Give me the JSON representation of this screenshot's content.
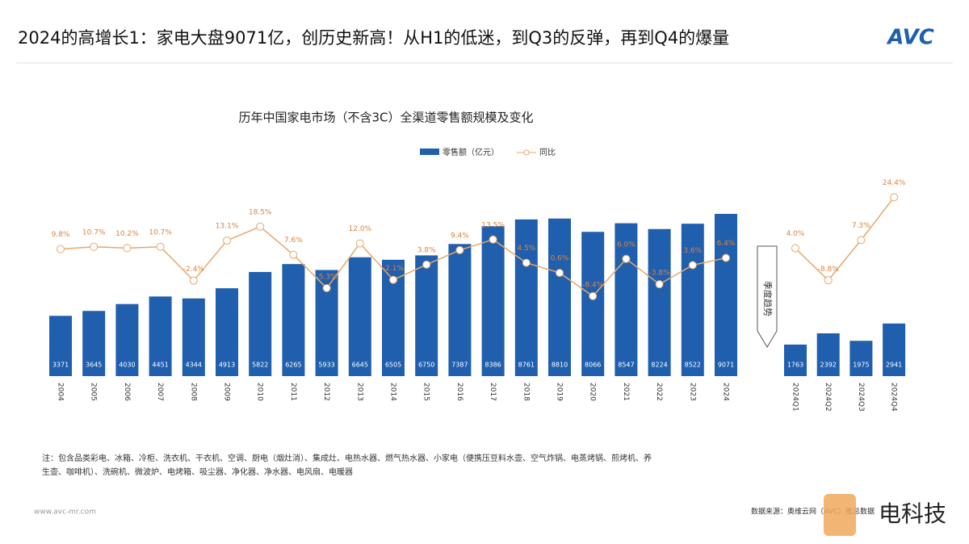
{
  "header": {
    "title": "2024的高增长1：家电大盘9071亿，创历史新高！从H1的低迷，到Q3的反弹，再到Q4的爆量",
    "logo": "AVC"
  },
  "chart_data": [
    {
      "type": "bar",
      "title": "历年中国家电市场（不含3C）全渠道零售额规模及变化",
      "categories": [
        "2004",
        "2005",
        "2006",
        "2007",
        "2008",
        "2009",
        "2010",
        "2011",
        "2012",
        "2013",
        "2014",
        "2015",
        "2016",
        "2017",
        "2018",
        "2019",
        "2020",
        "2021",
        "2022",
        "2023",
        "2024"
      ],
      "series": [
        {
          "name": "零售额（亿元）",
          "color": "#1f5fae",
          "values": [
            3371,
            3645,
            4030,
            4451,
            4344,
            4913,
            5822,
            6265,
            5933,
            6645,
            6505,
            6750,
            7387,
            8386,
            8761,
            8810,
            8066,
            8547,
            8224,
            8522,
            9071
          ]
        },
        {
          "name": "同比",
          "type": "line",
          "color": "#e8a86a",
          "values": [
            9.8,
            10.7,
            10.2,
            10.7,
            -2.4,
            13.1,
            18.5,
            7.6,
            -5.3,
            12.0,
            -2.1,
            3.8,
            9.4,
            13.5,
            4.5,
            0.6,
            -8.4,
            6.0,
            -3.8,
            3.6,
            6.4
          ],
          "value_labels": [
            "9.8%",
            "10.7%",
            "10.2%",
            "10.7%",
            "-2.4%",
            "13.1%",
            "18.5%",
            "7.6%",
            "-5.3%",
            "12.0%",
            "-2.1%",
            "3.8%",
            "9.4%",
            "13.5%",
            "4.5%",
            "0.6%",
            "-8.4%",
            "6.0%",
            "-3.8%",
            "3.6%",
            "6.4%"
          ]
        }
      ]
    },
    {
      "type": "bar",
      "categories": [
        "2024Q1",
        "2024Q2",
        "2024Q3",
        "2024Q4"
      ],
      "series": [
        {
          "color": "#1f5fae",
          "values": [
            1763,
            2392,
            1975,
            2941
          ]
        },
        {
          "type": "line",
          "color": "#e8a86a",
          "values": [
            4.0,
            -8.8,
            7.3,
            24.4
          ],
          "value_labels": [
            "4.0%",
            "-8.8%",
            "7.3%",
            "24.4%"
          ]
        }
      ]
    }
  ],
  "arrow_label": "季度趋势",
  "note": "注：包含品类彩电、冰箱、冷柜、洗衣机、干衣机、空调、厨电（烟灶消）、集成灶、电热水器、燃气热水器、小家电（便携压豆料水壶、空气炸锅、电蒸烤锅、煎烤机、养生壶、咖啡机）、洗碗机、微波炉、电烤箱、吸尘器、净化器、净水器、电风扇、电暖器",
  "website": "www.avc-mr.com",
  "source": "数据来源：奥维云网（AVC）推总数据",
  "brand": "电科技"
}
